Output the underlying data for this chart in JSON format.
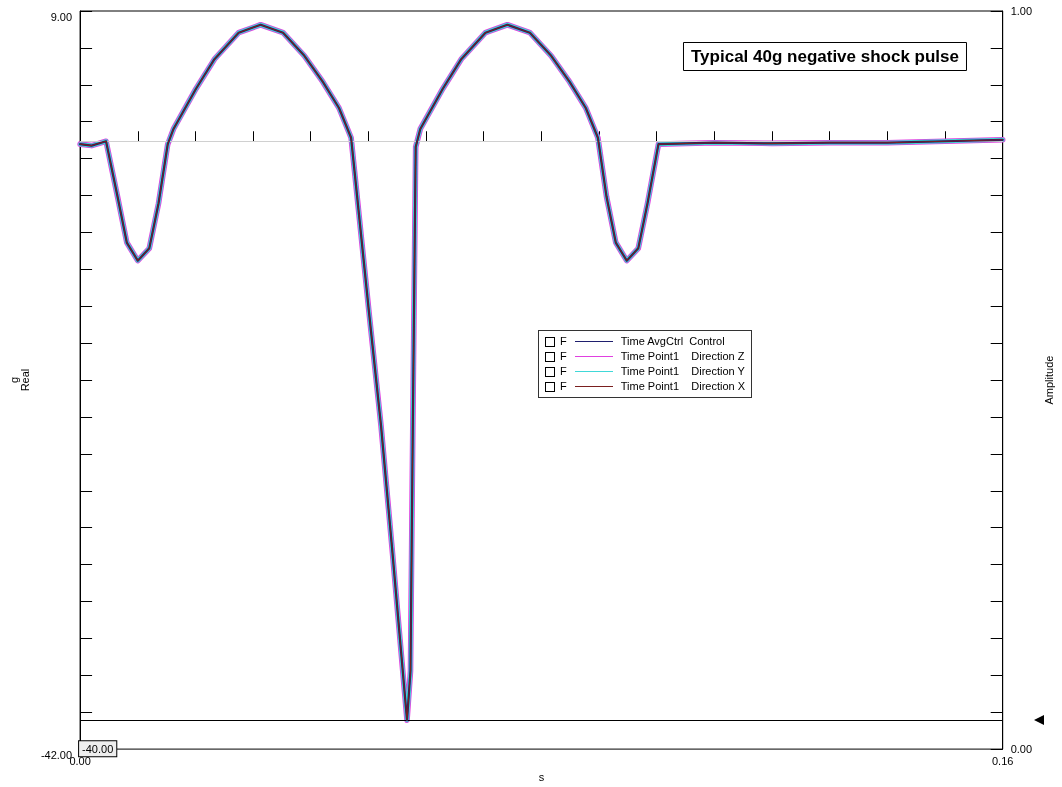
{
  "chart_data": {
    "type": "line",
    "title": "Typical 40g negative shock pulse",
    "xlabel": "s",
    "ylabel": "g\nReal",
    "y2label": "Amplitude",
    "x": [
      0,
      0.002,
      0.0045,
      0.0065,
      0.0081,
      0.01,
      0.012,
      0.0136,
      0.0152,
      0.0162,
      0.0201,
      0.0233,
      0.0275,
      0.0313,
      0.0352,
      0.0389,
      0.0421,
      0.0449,
      0.047,
      0.0501,
      0.0522,
      0.0541,
      0.0567,
      0.0573,
      0.0577,
      0.0582,
      0.059,
      0.0629,
      0.0661,
      0.0703,
      0.0741,
      0.078,
      0.0817,
      0.0849,
      0.0877,
      0.0898,
      0.0913,
      0.0929,
      0.0948,
      0.0968,
      0.0984,
      0.1003,
      0.11,
      0.12,
      0.13,
      0.14,
      0.15,
      0.16
    ],
    "series": [
      {
        "name": "Time AvgCtrl  Control",
        "color": "#1f1f6e",
        "values": [
          -0.2,
          -0.3,
          0,
          -3.84,
          -7.0,
          -8.25,
          -7.4,
          -4.3,
          -0.2,
          0.85,
          3.63,
          5.67,
          7.5,
          8.05,
          7.5,
          5.9,
          4.1,
          2.3,
          0.24,
          -11.8,
          -19.7,
          -28.1,
          -40,
          -36.6,
          -19.7,
          -0.4,
          0.85,
          3.63,
          5.67,
          7.5,
          8.05,
          7.5,
          5.9,
          4.1,
          2.3,
          0.24,
          -3.84,
          -7.0,
          -8.25,
          -7.4,
          -4.3,
          -0.2,
          -0.1,
          -0.15,
          -0.1,
          -0.1,
          0,
          0.1
        ]
      },
      {
        "name": "Time Point1    Direction Z",
        "color": "#e040e0",
        "values": [
          -0.2,
          -0.3,
          0,
          -3.84,
          -7.0,
          -8.25,
          -7.4,
          -4.3,
          -0.2,
          0.85,
          3.63,
          5.67,
          7.5,
          8.05,
          7.5,
          5.9,
          4.1,
          2.3,
          0.24,
          -11.8,
          -19.7,
          -28.1,
          -40,
          -36.6,
          -19.7,
          -0.4,
          0.85,
          3.63,
          5.67,
          7.5,
          8.05,
          7.5,
          5.9,
          4.1,
          2.3,
          0.24,
          -3.84,
          -7.0,
          -8.25,
          -7.4,
          -4.3,
          -0.2,
          -0.1,
          -0.15,
          -0.1,
          -0.1,
          0,
          0.1
        ]
      },
      {
        "name": "Time Point1    Direction Y",
        "color": "#40d8d8",
        "values": [
          -0.2,
          -0.3,
          0,
          -3.84,
          -7.0,
          -8.25,
          -7.4,
          -4.3,
          -0.2,
          0.85,
          3.63,
          5.67,
          7.5,
          8.05,
          7.5,
          5.9,
          4.1,
          2.3,
          0.24,
          -11.8,
          -19.7,
          -28.1,
          -40,
          -36.6,
          -19.7,
          -0.4,
          0.85,
          3.63,
          5.67,
          7.5,
          8.05,
          7.5,
          5.9,
          4.1,
          2.3,
          0.24,
          -3.84,
          -7.0,
          -8.25,
          -7.4,
          -4.3,
          -0.2,
          -0.1,
          -0.15,
          -0.1,
          -0.1,
          0,
          0.1
        ]
      },
      {
        "name": "Time Point1    Direction X",
        "color": "#7a1f1f",
        "values": [
          -0.2,
          -0.3,
          0,
          -3.84,
          -7.0,
          -8.25,
          -7.4,
          -4.3,
          -0.2,
          0.85,
          3.63,
          5.67,
          7.5,
          8.05,
          7.5,
          5.9,
          4.1,
          2.3,
          0.24,
          -11.8,
          -19.7,
          -28.1,
          -40,
          -36.6,
          -19.7,
          -0.4,
          0.85,
          3.63,
          5.67,
          7.5,
          8.05,
          7.5,
          5.9,
          4.1,
          2.3,
          0.24,
          -3.84,
          -7.0,
          -8.25,
          -7.4,
          -4.3,
          -0.2,
          -0.1,
          -0.15,
          -0.1,
          -0.1,
          0,
          0.1
        ]
      }
    ],
    "annotations": [
      "F",
      "F",
      "F",
      "F"
    ],
    "xlim": [
      0,
      0.16
    ],
    "xticks": [
      {
        "value": 0,
        "label": "0.00"
      },
      {
        "value": 0.01,
        "label": null
      },
      {
        "value": 0.02,
        "label": null
      },
      {
        "value": 0.03,
        "label": null
      },
      {
        "value": 0.04,
        "label": null
      },
      {
        "value": 0.05,
        "label": null
      },
      {
        "value": 0.06,
        "label": null
      },
      {
        "value": 0.07,
        "label": null
      },
      {
        "value": 0.08,
        "label": null
      },
      {
        "value": 0.09,
        "label": null
      },
      {
        "value": 0.1,
        "label": null
      },
      {
        "value": 0.11,
        "label": null
      },
      {
        "value": 0.12,
        "label": null
      },
      {
        "value": 0.13,
        "label": null
      },
      {
        "value": 0.14,
        "label": null
      },
      {
        "value": 0.15,
        "label": null
      },
      {
        "value": 0.16,
        "label": "0.16"
      }
    ],
    "ylim": [
      -42,
      9
    ],
    "yticks": [
      {
        "value": -42,
        "label": "-42.00"
      },
      {
        "value": -39.45,
        "label": null
      },
      {
        "value": -36.9,
        "label": null
      },
      {
        "value": -34.35,
        "label": null
      },
      {
        "value": -31.8,
        "label": null
      },
      {
        "value": -29.25,
        "label": null
      },
      {
        "value": -26.7,
        "label": null
      },
      {
        "value": -24.15,
        "label": null
      },
      {
        "value": -21.6,
        "label": null
      },
      {
        "value": -19.05,
        "label": null
      },
      {
        "value": -16.5,
        "label": null
      },
      {
        "value": -13.95,
        "label": null
      },
      {
        "value": -11.4,
        "label": null
      },
      {
        "value": -8.85,
        "label": null
      },
      {
        "value": -6.3,
        "label": null
      },
      {
        "value": -3.75,
        "label": null
      },
      {
        "value": -1.2,
        "label": null
      },
      {
        "value": 1.35,
        "label": null
      },
      {
        "value": 3.9,
        "label": null
      },
      {
        "value": 6.45,
        "label": null
      },
      {
        "value": 9,
        "label": "9.00"
      }
    ],
    "y2lim": [
      0,
      1
    ],
    "y2ticks": [
      {
        "value": 0,
        "label": "0.00"
      },
      {
        "value": 0.05,
        "label": null
      },
      {
        "value": 0.1,
        "label": null
      },
      {
        "value": 0.15,
        "label": null
      },
      {
        "value": 0.2,
        "label": null
      },
      {
        "value": 0.25,
        "label": null
      },
      {
        "value": 0.3,
        "label": null
      },
      {
        "value": 0.35,
        "label": null
      },
      {
        "value": 0.4,
        "label": null
      },
      {
        "value": 0.45,
        "label": null
      },
      {
        "value": 0.5,
        "label": null
      },
      {
        "value": 0.55,
        "label": null
      },
      {
        "value": 0.6,
        "label": null
      },
      {
        "value": 0.65,
        "label": null
      },
      {
        "value": 0.7,
        "label": null
      },
      {
        "value": 0.75,
        "label": null
      },
      {
        "value": 0.8,
        "label": null
      },
      {
        "value": 0.85,
        "label": null
      },
      {
        "value": 0.9,
        "label": null
      },
      {
        "value": 0.95,
        "label": null
      },
      {
        "value": 1,
        "label": "1.00"
      }
    ],
    "ref_lines": [
      {
        "axis": "y",
        "value": 0,
        "color": "#d0d0d0"
      },
      {
        "axis": "y",
        "value": -40,
        "label": "-40.00",
        "color": "#000000"
      }
    ],
    "legend": "center",
    "grid": false,
    "marker": "none",
    "line_style": "solid"
  }
}
